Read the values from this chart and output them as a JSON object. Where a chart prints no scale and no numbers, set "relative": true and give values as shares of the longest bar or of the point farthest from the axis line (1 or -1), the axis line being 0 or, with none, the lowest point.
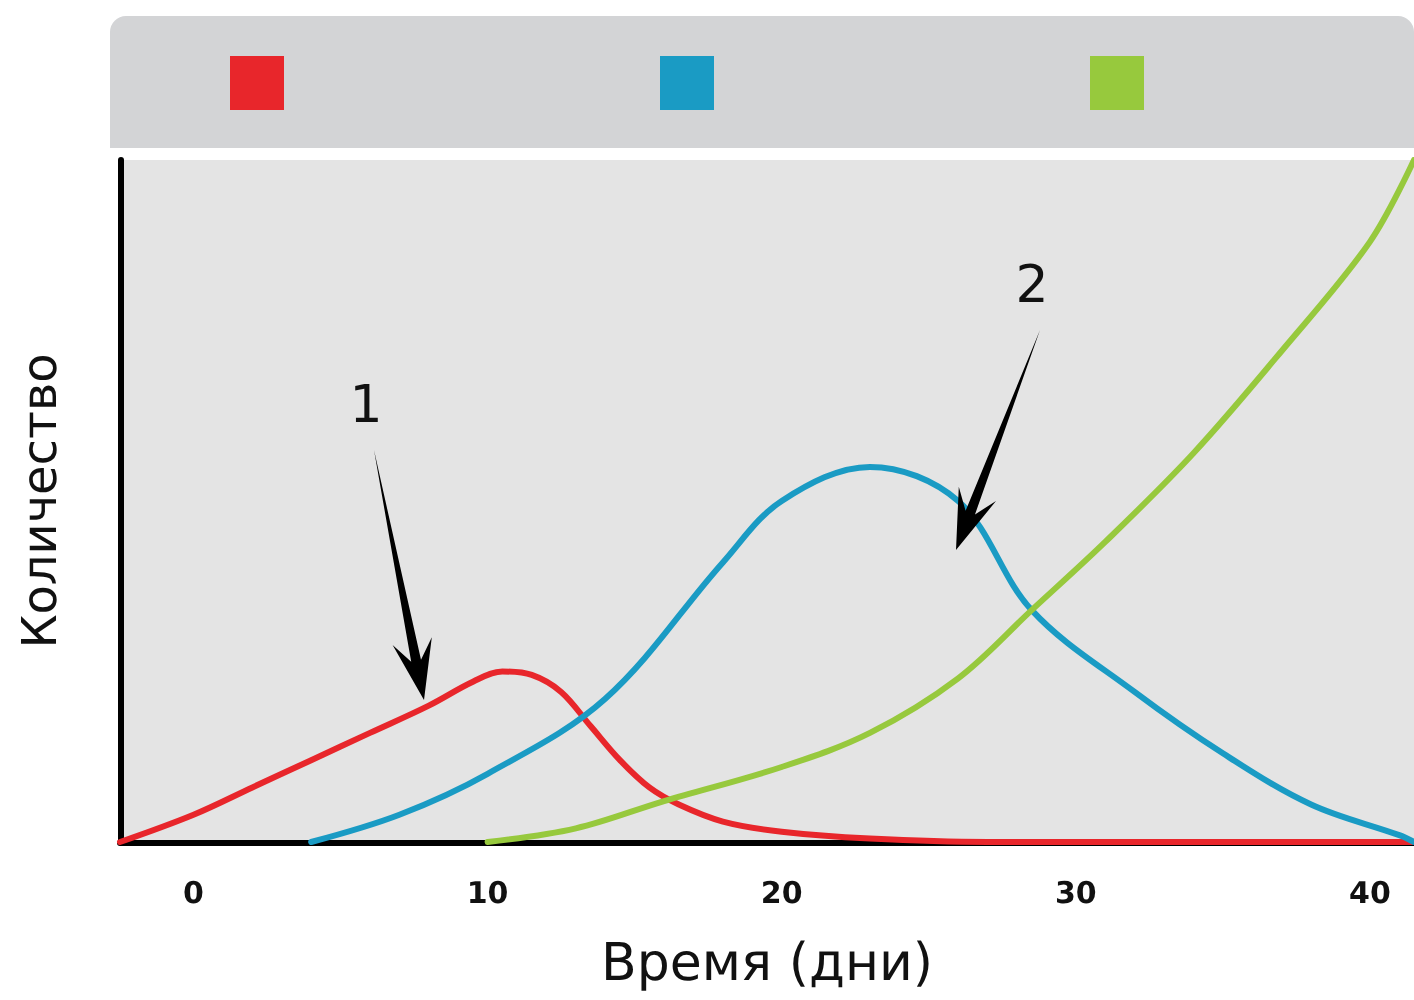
{
  "chart_data": {
    "type": "line",
    "xlabel": "Время (дни)",
    "ylabel": "Количество",
    "relative": true,
    "xlim": [
      -2.5,
      41.5
    ],
    "xticks": [
      0,
      10,
      20,
      30,
      40
    ],
    "marker": "none",
    "line_style": "solid",
    "annotations": [
      "1",
      "2"
    ],
    "series": [
      {
        "color": "#e8262b",
        "x": [
          -2.5,
          0,
          2,
          4,
          6,
          8,
          9.5,
          10.5,
          11.5,
          12.5,
          13.5,
          14.5,
          15.5,
          16.5,
          18,
          20,
          23,
          27,
          41.5
        ],
        "values": [
          0,
          0.04,
          0.08,
          0.12,
          0.16,
          0.2,
          0.235,
          0.25,
          0.245,
          0.22,
          0.17,
          0.12,
          0.08,
          0.055,
          0.03,
          0.015,
          0.005,
          0,
          0
        ]
      },
      {
        "color": "#1a9bc4",
        "x": [
          4,
          7,
          10,
          14,
          18,
          20,
          23,
          26,
          28.5,
          32,
          35,
          38,
          41,
          41.5
        ],
        "values": [
          0,
          0.04,
          0.1,
          0.21,
          0.41,
          0.5,
          0.55,
          0.5,
          0.34,
          0.22,
          0.13,
          0.055,
          0.01,
          0
        ]
      },
      {
        "color": "#97c93d",
        "x": [
          10,
          13,
          16,
          20,
          23,
          26,
          28.5,
          31,
          34,
          37,
          40,
          41.5
        ],
        "values": [
          0,
          0.02,
          0.06,
          0.11,
          0.16,
          0.24,
          0.34,
          0.44,
          0.57,
          0.72,
          0.88,
          1
        ]
      }
    ]
  }
}
